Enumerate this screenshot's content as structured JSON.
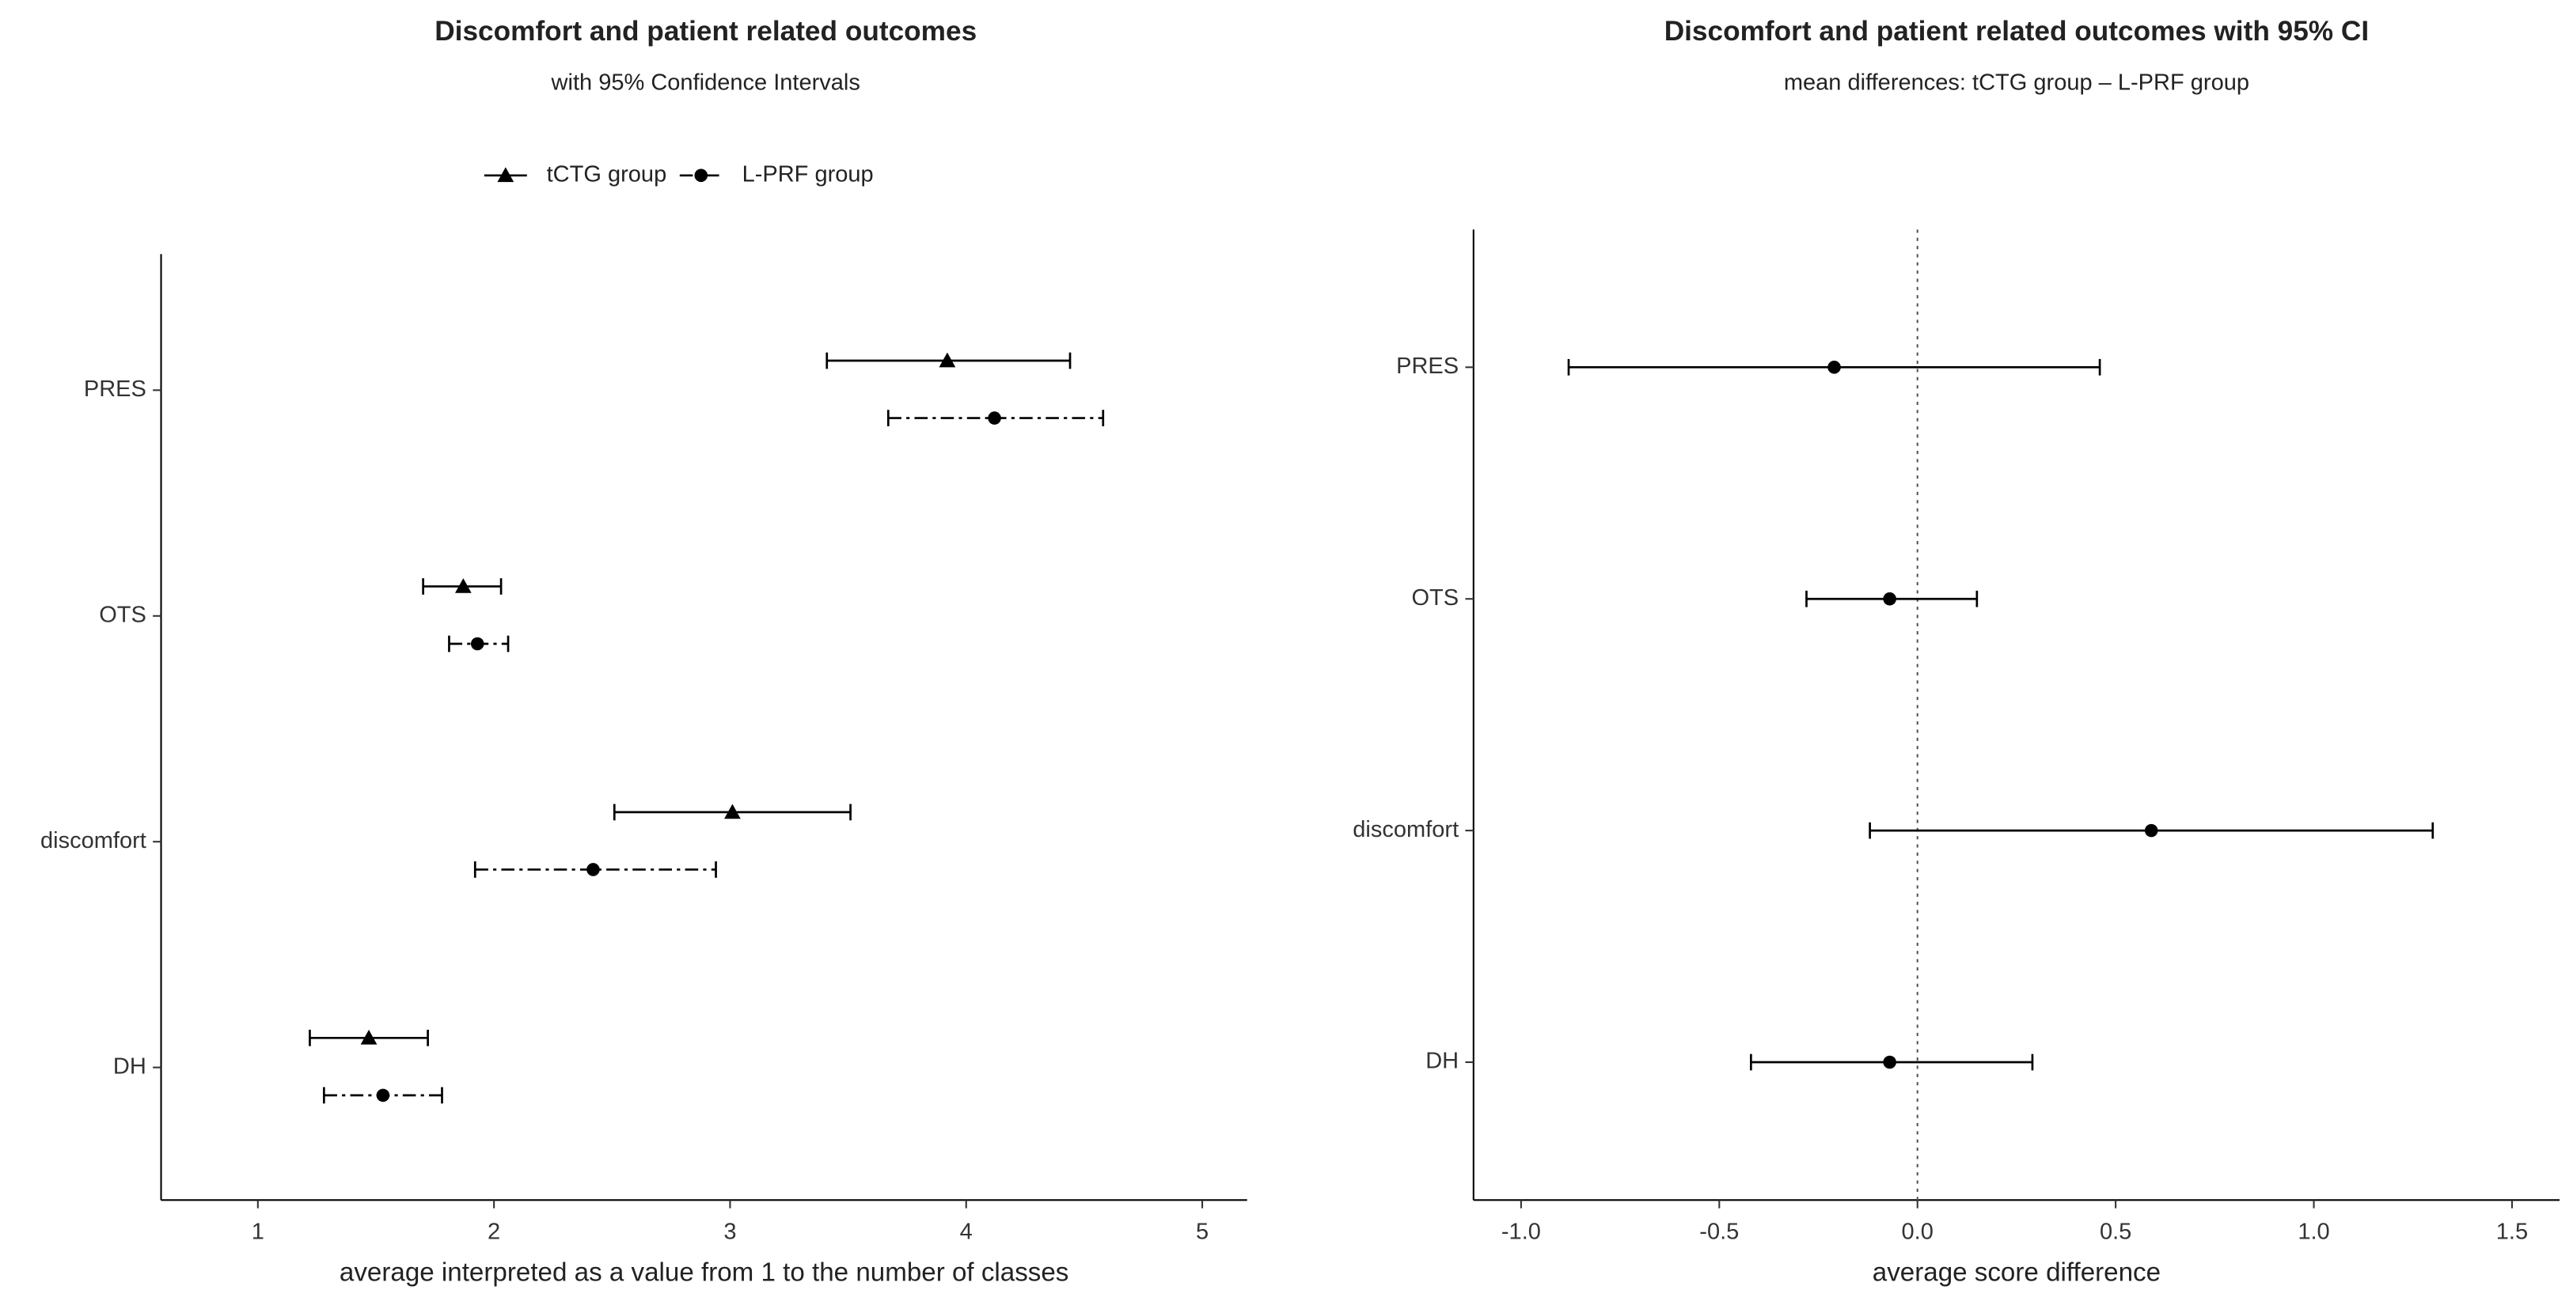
{
  "chart_data": [
    {
      "type": "forest",
      "title": "Discomfort and patient related outcomes",
      "subtitle": "with 95% Confidence Intervals",
      "x_label": "average interpreted as a value from 1 to the number of classes",
      "categories": [
        "PRES",
        "OTS",
        "discomfort",
        "DH"
      ],
      "xlim": [
        0.59,
        5.19
      ],
      "xticks": [
        1,
        2,
        3,
        4,
        5
      ],
      "legend": "top",
      "series": [
        {
          "name": "tCTG group",
          "color": "#000000",
          "marker": "triangle",
          "linestyle": "solid",
          "values": [
            3.92,
            1.87,
            3.01,
            1.47
          ],
          "lower": [
            3.41,
            1.7,
            2.51,
            1.22
          ],
          "upper": [
            4.44,
            2.03,
            3.51,
            1.72
          ]
        },
        {
          "name": "L-PRF group",
          "color": "#000000",
          "marker": "circle",
          "linestyle": "dashdot",
          "values": [
            4.12,
            1.93,
            2.42,
            1.53
          ],
          "lower": [
            3.67,
            1.81,
            1.92,
            1.28
          ],
          "upper": [
            4.58,
            2.06,
            2.94,
            1.78
          ]
        }
      ]
    },
    {
      "type": "forest",
      "title": "Discomfort and patient related outcomes with 95% CI",
      "subtitle": "mean differences: tCTG group – L-PRF group",
      "x_label": "average score difference",
      "categories": [
        "PRES",
        "OTS",
        "discomfort",
        "DH"
      ],
      "xlim": [
        -1.12,
        1.62
      ],
      "xticks": [
        {
          "value": -1,
          "label": "-1.0"
        },
        -0.5,
        {
          "value": 0,
          "label": "0.0"
        },
        0.5,
        {
          "value": 1,
          "label": "1.0"
        },
        1.5
      ],
      "reference_line": 0,
      "series": [
        {
          "color": "#000000",
          "marker": "circle",
          "linestyle": "solid",
          "values": [
            -0.21,
            -0.07,
            0.59,
            -0.07
          ],
          "lower": [
            -0.88,
            -0.28,
            -0.12,
            -0.42
          ],
          "upper": [
            0.46,
            0.15,
            1.3,
            0.29
          ]
        }
      ]
    }
  ]
}
